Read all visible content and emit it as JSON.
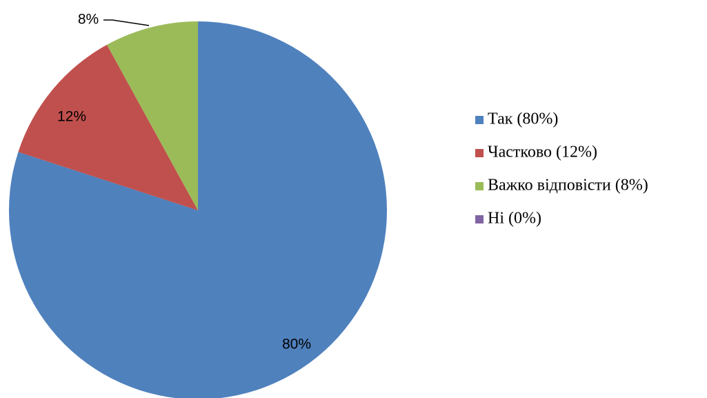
{
  "chart_data": {
    "type": "pie",
    "start_angle_deg": 0,
    "direction": "clockwise",
    "legend_position": "right",
    "slices": [
      {
        "name": "Так (80%)",
        "value": 80,
        "label": "80%",
        "color": "#4f81bd"
      },
      {
        "name": "Частково (12%)",
        "value": 12,
        "label": "12%",
        "color": "#c0504d"
      },
      {
        "name": "Важко відповісти (8%)",
        "value": 8,
        "label": "8%",
        "color": "#9bbb59"
      },
      {
        "name": "Ні (0%)",
        "value": 0,
        "label": "",
        "color": "#8064a2"
      }
    ]
  }
}
